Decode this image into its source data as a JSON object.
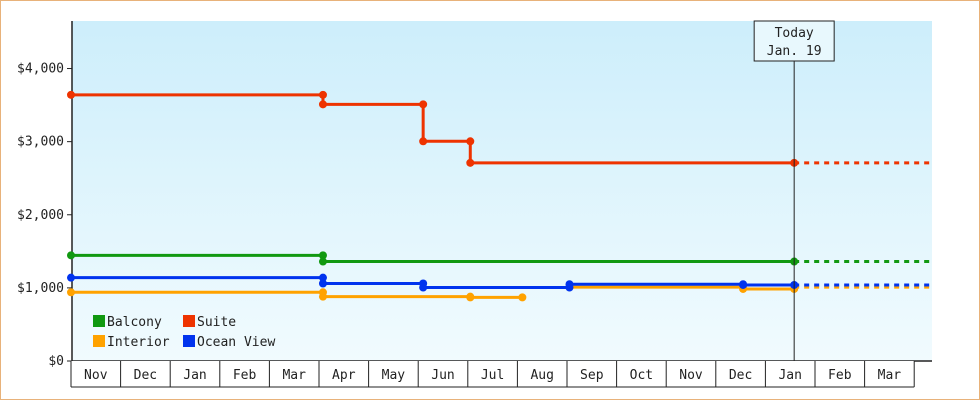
{
  "chart_data": {
    "type": "line",
    "step": true,
    "y_ticks": [
      {
        "value": 0,
        "label": "$0"
      },
      {
        "value": 1000,
        "label": "$1,000"
      },
      {
        "value": 2000,
        "label": "$2,000"
      },
      {
        "value": 3000,
        "label": "$3,000"
      },
      {
        "value": 4000,
        "label": "$4,000"
      }
    ],
    "ylim": [
      0,
      4650
    ],
    "x_months": [
      "Nov",
      "Dec",
      "Jan",
      "Feb",
      "Mar",
      "Apr",
      "May",
      "Jun",
      "Jul",
      "Aug",
      "Sep",
      "Oct",
      "Nov",
      "Dec",
      "Jan",
      "Feb",
      "Mar"
    ],
    "today": {
      "line1": "Today",
      "line2": "Jan. 19",
      "x": 14.58
    },
    "grid": false,
    "legend_position": "bottom-left",
    "series": [
      {
        "name": "Balcony",
        "color": "#119911",
        "points": [
          [
            0,
            1445
          ],
          [
            5.08,
            1445
          ],
          [
            5.08,
            1360
          ],
          [
            14.58,
            1360
          ]
        ],
        "projection": 1360
      },
      {
        "name": "Suite",
        "color": "#ee3300",
        "points": [
          [
            0,
            3640
          ],
          [
            5.08,
            3640
          ],
          [
            5.08,
            3510
          ],
          [
            7.1,
            3510
          ],
          [
            7.1,
            3005
          ],
          [
            8.05,
            3005
          ],
          [
            8.05,
            2710
          ],
          [
            14.58,
            2710
          ]
        ],
        "projection": 2710
      },
      {
        "name": "Interior",
        "color": "#ffa200",
        "points": [
          [
            0,
            940
          ],
          [
            5.08,
            940
          ],
          [
            5.08,
            880
          ],
          [
            8.05,
            880
          ],
          [
            8.05,
            870
          ],
          [
            9.1,
            870
          ]
        ],
        "segment2": [
          [
            10.05,
            1010
          ],
          [
            13.55,
            1010
          ],
          [
            13.55,
            985
          ],
          [
            14.58,
            985
          ]
        ],
        "projection": 1010
      },
      {
        "name": "Ocean View",
        "color": "#0033ee",
        "points": [
          [
            0,
            1140
          ],
          [
            5.08,
            1140
          ],
          [
            5.08,
            1060
          ],
          [
            7.1,
            1060
          ],
          [
            7.1,
            1005
          ],
          [
            10.05,
            1005
          ],
          [
            10.05,
            1050
          ],
          [
            13.55,
            1050
          ],
          [
            13.55,
            1040
          ],
          [
            14.58,
            1040
          ]
        ],
        "projection": 1040
      }
    ]
  }
}
